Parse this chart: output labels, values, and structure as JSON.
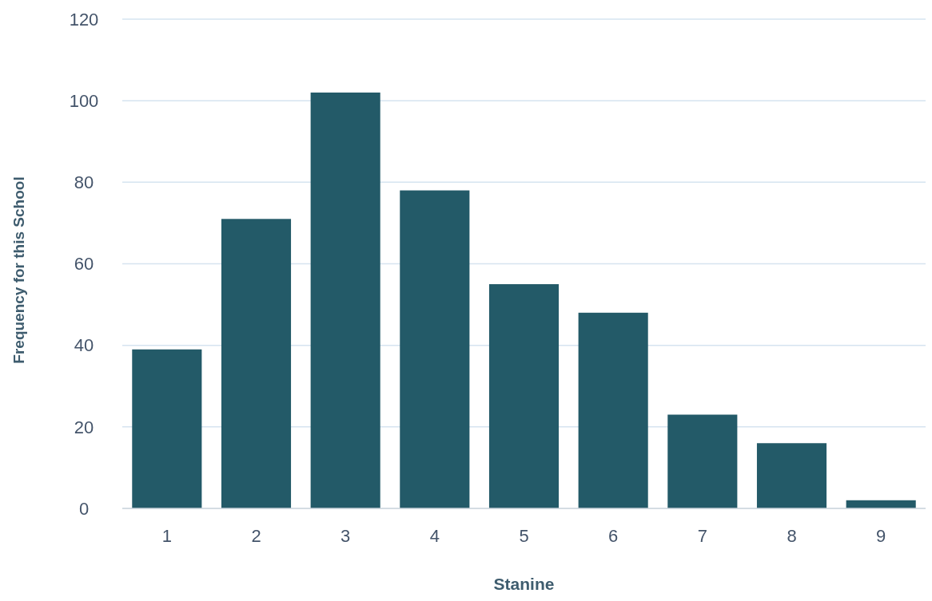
{
  "chart_data": {
    "type": "bar",
    "xlabel": "Stanine",
    "ylabel": "Frequency for this School",
    "categories": [
      "1",
      "2",
      "3",
      "4",
      "5",
      "6",
      "7",
      "8",
      "9"
    ],
    "values": [
      39,
      71,
      102,
      78,
      55,
      48,
      23,
      16,
      2
    ],
    "color": "#235a68",
    "ylim": [
      0,
      120
    ],
    "yticks": [
      0,
      20,
      40,
      60,
      80,
      100,
      120
    ],
    "grid": "y"
  }
}
